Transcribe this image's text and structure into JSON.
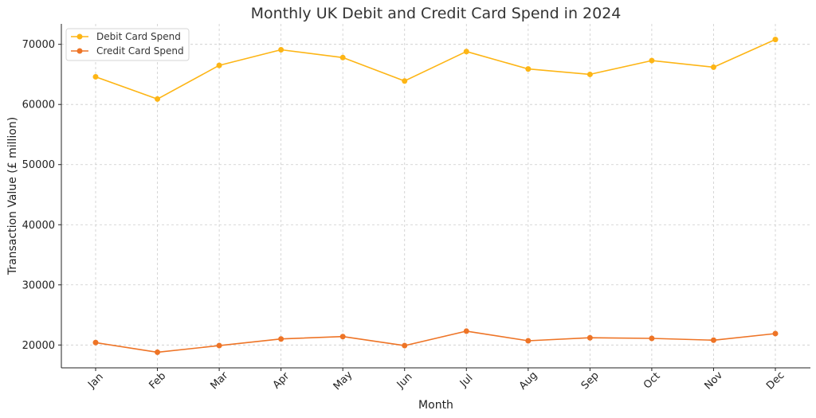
{
  "chart_data": {
    "type": "line",
    "title": "Monthly UK Debit and Credit Card Spend in 2024",
    "xlabel": "Month",
    "ylabel": "Transaction Value (£ million)",
    "categories": [
      "Jan",
      "Feb",
      "Mar",
      "Apr",
      "May",
      "Jun",
      "Jul",
      "Aug",
      "Sep",
      "Oct",
      "Nov",
      "Dec"
    ],
    "ylim": [
      16200,
      73400
    ],
    "yticks": [
      20000,
      30000,
      40000,
      50000,
      60000,
      70000
    ],
    "grid": true,
    "legend_position": "top-left",
    "series": [
      {
        "name": "Debit Card Spend",
        "color": "#FDB515",
        "values": [
          64600,
          60900,
          66500,
          69100,
          67800,
          63900,
          68800,
          65900,
          65000,
          67300,
          66200,
          70800
        ]
      },
      {
        "name": "Credit Card Spend",
        "color": "#EE7426",
        "values": [
          20400,
          18800,
          19900,
          21000,
          21400,
          19900,
          22300,
          20700,
          21200,
          21100,
          20800,
          21900
        ]
      }
    ]
  }
}
